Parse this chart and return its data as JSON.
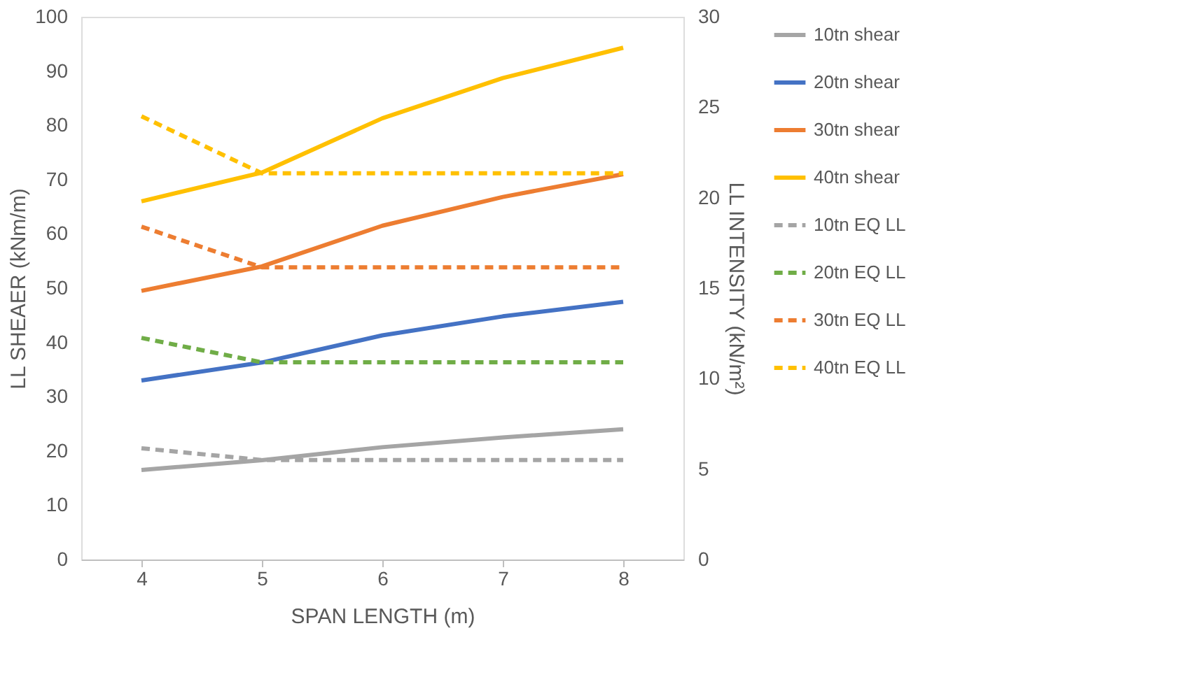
{
  "chart_data": {
    "type": "line",
    "xlabel": "SPAN LENGTH (m)",
    "ylabel": "LL SHEAER (kNm/m)",
    "y2label": "LL INTENSITY (kN/m²)",
    "categories": [
      "4",
      "5",
      "6",
      "7",
      "8"
    ],
    "ylim": [
      0,
      100
    ],
    "yticks": [
      0,
      10,
      20,
      30,
      40,
      50,
      60,
      70,
      80,
      90,
      100
    ],
    "y2lim": [
      0,
      30
    ],
    "y2ticks": [
      0,
      5,
      10,
      15,
      20,
      25,
      30
    ],
    "grid": false,
    "legend": "right",
    "marker": "none",
    "series": [
      {
        "name": "10tn shear",
        "color": "#a5a5a5",
        "line_style": "solid",
        "values": [
          16.5,
          18.3,
          20.7,
          22.5,
          24
        ]
      },
      {
        "name": "20tn shear",
        "color": "#4472c4",
        "line_style": "solid",
        "values": [
          33,
          36.3,
          41.3,
          44.8,
          47.5
        ]
      },
      {
        "name": "30tn shear",
        "color": "#ed7d31",
        "line_style": "solid",
        "values": [
          49.5,
          54,
          61.5,
          66.8,
          71
        ]
      },
      {
        "name": "40tn shear",
        "color": "#ffc000",
        "line_style": "solid",
        "values": [
          66,
          71.3,
          81.3,
          88.7,
          94.3
        ]
      },
      {
        "name": "10tn EQ LL",
        "color": "#a5a5a5",
        "line_style": "dashed",
        "axis": "y2",
        "values": [
          6.15,
          5.5,
          5.5,
          5.5,
          5.5
        ]
      },
      {
        "name": "20tn EQ LL",
        "color": "#70ad47",
        "line_style": "dashed",
        "axis": "y2",
        "values": [
          12.25,
          10.9,
          10.9,
          10.9,
          10.9
        ]
      },
      {
        "name": "30tn EQ LL",
        "color": "#ed7d31",
        "line_style": "dashed",
        "axis": "y2",
        "values": [
          18.4,
          16.15,
          16.15,
          16.15,
          16.15
        ]
      },
      {
        "name": "40tn EQ LL",
        "color": "#ffc000",
        "line_style": "dashed",
        "axis": "y2",
        "values": [
          24.5,
          21.35,
          21.35,
          21.35,
          21.35
        ]
      }
    ]
  }
}
